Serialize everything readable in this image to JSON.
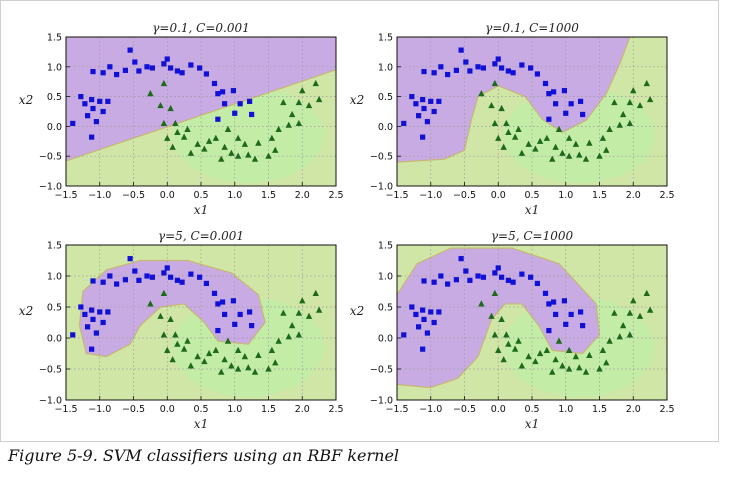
{
  "caption": "Figure 5-9. SVM classifiers using an RBF kernel",
  "colors": {
    "class0_region": "#c9a6ea",
    "class1_region": "#cfe6a6",
    "class1_core": "#b9f0a8",
    "boundary": "#c8b46e",
    "class0_marker": "#1010d6",
    "class1_marker": "#1d6a1d",
    "grid": "#9a9a9a"
  },
  "chart_data": [
    {
      "type": "scatter",
      "title": "γ=0.1, C=0.001",
      "xlabel": "x1",
      "ylabel": "x2",
      "xlim": [
        -1.5,
        2.5
      ],
      "ylim": [
        -1.0,
        1.5
      ],
      "xticks": [
        "−1.5",
        "−1.0",
        "−0.5",
        "0.0",
        "0.5",
        "1.0",
        "1.5",
        "2.0",
        "2.5"
      ],
      "yticks": [
        "−1.0",
        "−0.5",
        "0.0",
        "0.5",
        "1.0",
        "1.5"
      ],
      "grid": true,
      "decision_boundary": [
        [
          -1.5,
          -0.58
        ],
        [
          2.5,
          0.95
        ]
      ],
      "series": []
    },
    {
      "type": "scatter",
      "title": "γ=0.1, C=1000",
      "xlabel": "x1",
      "ylabel": "x2",
      "xlim": [
        -1.5,
        2.5
      ],
      "ylim": [
        -1.0,
        1.5
      ],
      "xticks": [
        "−1.5",
        "−1.0",
        "−0.5",
        "0.0",
        "0.5",
        "1.0",
        "1.5",
        "2.0",
        "2.5"
      ],
      "yticks": [
        "−1.0",
        "−0.5",
        "0.0",
        "0.5",
        "1.0",
        "1.5"
      ],
      "grid": true,
      "decision_boundary": [
        [
          -1.5,
          -0.6
        ],
        [
          -0.8,
          -0.55
        ],
        [
          -0.5,
          -0.4
        ],
        [
          -0.4,
          0.1
        ],
        [
          -0.3,
          0.5
        ],
        [
          0.0,
          0.68
        ],
        [
          0.4,
          0.5
        ],
        [
          0.65,
          0.12
        ],
        [
          0.95,
          -0.1
        ],
        [
          1.3,
          0.1
        ],
        [
          1.6,
          0.55
        ],
        [
          1.8,
          1.05
        ],
        [
          1.95,
          1.5
        ]
      ],
      "series": []
    },
    {
      "type": "scatter",
      "title": "γ=5, C=0.001",
      "xlabel": "x1",
      "ylabel": "x2",
      "xlim": [
        -1.5,
        2.5
      ],
      "ylim": [
        -1.0,
        1.5
      ],
      "xticks": [
        "−1.5",
        "−1.0",
        "−0.5",
        "0.0",
        "0.5",
        "1.0",
        "1.5",
        "2.0",
        "2.5"
      ],
      "yticks": [
        "−1.0",
        "−0.5",
        "0.0",
        "0.5",
        "1.0",
        "1.5"
      ],
      "grid": true,
      "decision_boundary": [
        [
          -1.3,
          0.2
        ],
        [
          -1.25,
          0.75
        ],
        [
          -0.9,
          1.1
        ],
        [
          -0.4,
          1.25
        ],
        [
          0.3,
          1.25
        ],
        [
          0.95,
          1.05
        ],
        [
          1.35,
          0.7
        ],
        [
          1.45,
          0.25
        ],
        [
          1.2,
          -0.1
        ],
        [
          0.75,
          -0.05
        ],
        [
          0.55,
          0.25
        ],
        [
          0.25,
          0.55
        ],
        [
          -0.1,
          0.5
        ],
        [
          -0.4,
          0.2
        ],
        [
          -0.55,
          -0.1
        ],
        [
          -0.9,
          -0.3
        ],
        [
          -1.2,
          -0.25
        ]
      ],
      "series": []
    },
    {
      "type": "scatter",
      "title": "γ=5, C=1000",
      "xlabel": "x1",
      "ylabel": "x2",
      "xlim": [
        -1.5,
        2.5
      ],
      "ylim": [
        -1.0,
        1.5
      ],
      "xticks": [
        "−1.5",
        "−1.0",
        "−0.5",
        "0.0",
        "0.5",
        "1.0",
        "1.5",
        "2.0",
        "2.5"
      ],
      "yticks": [
        "−1.0",
        "−0.5",
        "0.0",
        "0.5",
        "1.0",
        "1.5"
      ],
      "grid": true,
      "decision_boundary": [
        [
          -1.5,
          0.7
        ],
        [
          -1.2,
          1.2
        ],
        [
          -0.7,
          1.45
        ],
        [
          0.2,
          1.45
        ],
        [
          0.9,
          1.2
        ],
        [
          1.45,
          0.55
        ],
        [
          1.5,
          0.05
        ],
        [
          1.25,
          -0.25
        ],
        [
          0.8,
          -0.2
        ],
        [
          0.6,
          0.2
        ],
        [
          0.35,
          0.55
        ],
        [
          0.1,
          0.55
        ],
        [
          -0.1,
          0.3
        ],
        [
          -0.3,
          -0.3
        ],
        [
          -0.6,
          -0.65
        ],
        [
          -1.0,
          -0.8
        ],
        [
          -1.5,
          -0.75
        ]
      ],
      "series": []
    }
  ],
  "shared_series": [
    {
      "marker": "square",
      "points": [
        [
          -1.1,
          0.92
        ],
        [
          -0.95,
          0.9
        ],
        [
          -0.75,
          0.87
        ],
        [
          -0.85,
          1.0
        ],
        [
          -0.62,
          0.94
        ],
        [
          -0.42,
          0.93
        ],
        [
          -0.3,
          1.0
        ],
        [
          -0.48,
          1.08
        ],
        [
          -0.55,
          1.28
        ],
        [
          -0.22,
          0.98
        ],
        [
          -0.05,
          1.05
        ],
        [
          0.0,
          1.13
        ],
        [
          0.05,
          0.98
        ],
        [
          0.15,
          0.93
        ],
        [
          0.22,
          0.9
        ],
        [
          0.35,
          1.03
        ],
        [
          0.48,
          0.98
        ],
        [
          0.58,
          0.88
        ],
        [
          0.7,
          0.72
        ],
        [
          0.82,
          0.58
        ],
        [
          0.98,
          0.6
        ],
        [
          0.75,
          0.55
        ],
        [
          0.85,
          0.38
        ],
        [
          1.08,
          0.38
        ],
        [
          1.22,
          0.42
        ],
        [
          1.0,
          0.22
        ],
        [
          1.25,
          0.2
        ],
        [
          0.75,
          0.12
        ],
        [
          -1.28,
          0.5
        ],
        [
          -1.12,
          0.45
        ],
        [
          -1.0,
          0.42
        ],
        [
          -0.88,
          0.42
        ],
        [
          -1.22,
          0.38
        ],
        [
          -1.1,
          0.3
        ],
        [
          -0.95,
          0.25
        ],
        [
          -1.18,
          0.18
        ],
        [
          -1.05,
          0.08
        ],
        [
          -1.4,
          0.05
        ],
        [
          -1.12,
          -0.18
        ]
      ]
    },
    {
      "marker": "triangle",
      "points": [
        [
          -0.25,
          0.55
        ],
        [
          -0.05,
          0.72
        ],
        [
          -0.1,
          0.35
        ],
        [
          0.05,
          0.3
        ],
        [
          -0.05,
          0.05
        ],
        [
          0.12,
          0.05
        ],
        [
          0.15,
          -0.1
        ],
        [
          0.0,
          -0.2
        ],
        [
          0.25,
          -0.18
        ],
        [
          0.08,
          -0.35
        ],
        [
          0.35,
          -0.45
        ],
        [
          0.55,
          -0.38
        ],
        [
          0.45,
          -0.3
        ],
        [
          0.62,
          -0.25
        ],
        [
          0.72,
          -0.2
        ],
        [
          0.3,
          -0.05
        ],
        [
          0.8,
          -0.55
        ],
        [
          0.95,
          -0.45
        ],
        [
          1.05,
          -0.5
        ],
        [
          1.15,
          -0.3
        ],
        [
          1.2,
          -0.48
        ],
        [
          1.3,
          -0.55
        ],
        [
          1.35,
          -0.28
        ],
        [
          1.5,
          -0.5
        ],
        [
          1.6,
          -0.4
        ],
        [
          1.55,
          -0.2
        ],
        [
          1.65,
          -0.05
        ],
        [
          1.8,
          0.02
        ],
        [
          1.85,
          0.2
        ],
        [
          1.72,
          0.4
        ],
        [
          1.95,
          0.4
        ],
        [
          2.0,
          0.6
        ],
        [
          2.2,
          0.72
        ],
        [
          2.25,
          0.45
        ],
        [
          2.1,
          0.35
        ],
        [
          1.95,
          0.05
        ],
        [
          1.05,
          -0.2
        ],
        [
          0.9,
          -0.05
        ],
        [
          0.85,
          -0.35
        ]
      ]
    }
  ]
}
